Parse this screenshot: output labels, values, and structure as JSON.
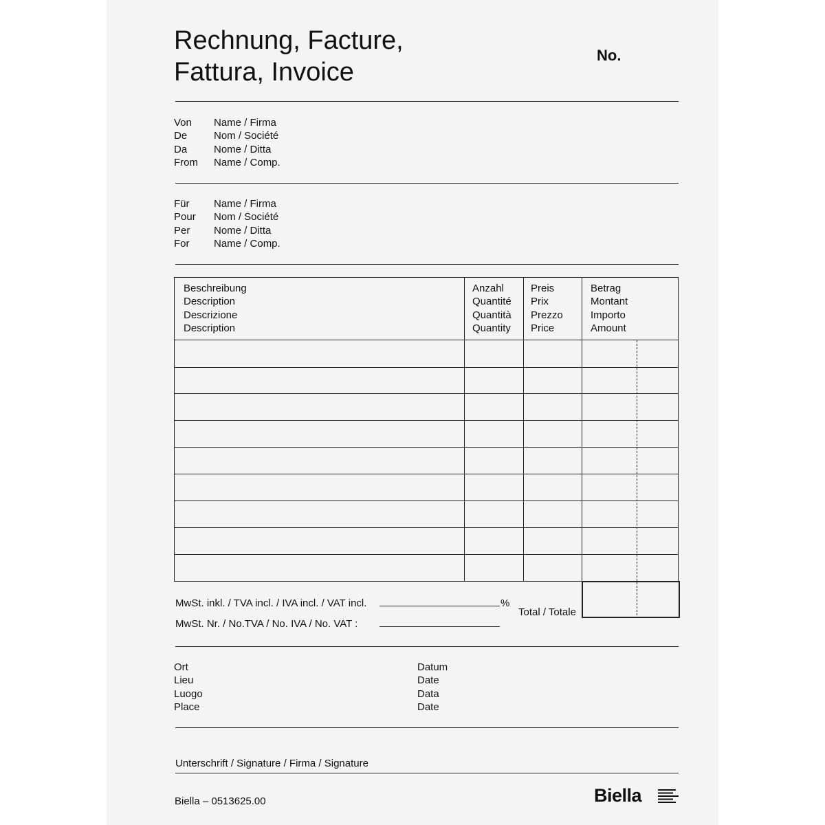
{
  "title": {
    "line1": "Rechnung, Facture,",
    "line2": "Fattura, Invoice",
    "number_label": "No."
  },
  "from": {
    "labels": [
      "Von",
      "De",
      "Da",
      "From"
    ],
    "fields": [
      "Name / Firma",
      "Nom / Société",
      "Nome / Ditta",
      "Name / Comp."
    ]
  },
  "to": {
    "labels": [
      "Für",
      "Pour",
      "Per",
      "For"
    ],
    "fields": [
      "Name / Firma",
      "Nom / Société",
      "Nome / Ditta",
      "Name / Comp."
    ]
  },
  "table": {
    "headers": [
      [
        "Beschreibung",
        "Description",
        "Descrizione",
        "Description"
      ],
      [
        "Anzahl",
        "Quantité",
        "Quantità",
        "Quantity"
      ],
      [
        "Preis",
        "Prix",
        "Prezzo",
        "Price"
      ],
      [
        "Betrag",
        "Montant",
        "Importo",
        "Amount"
      ]
    ],
    "empty_rows": 9
  },
  "vat": {
    "included": "MwSt. inkl. / TVA incl. / IVA incl. / VAT incl.",
    "percent": "%",
    "number": "MwSt. Nr. / No.TVA / No. IVA / No. VAT :",
    "total": "Total / Totale"
  },
  "place": [
    "Ort",
    "Lieu",
    "Luogo",
    "Place"
  ],
  "date": [
    "Datum",
    "Date",
    "Data",
    "Date"
  ],
  "signature": "Unterschrift / Signature / Firma / Signature",
  "footer": {
    "code": "Biella – 0513625.00",
    "logo": "Biella"
  }
}
